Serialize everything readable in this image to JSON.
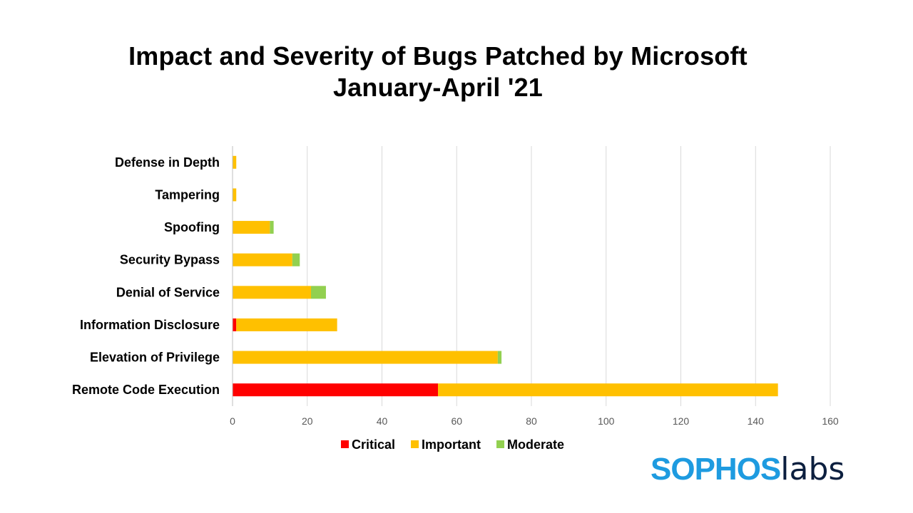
{
  "chart_data": {
    "type": "bar",
    "orientation": "horizontal",
    "stacked": true,
    "title": "Impact and Severity of Bugs Patched by Microsoft",
    "subtitle": "January-April '21",
    "categories": [
      "Defense in Depth",
      "Tampering",
      "Spoofing",
      "Security Bypass",
      "Denial of Service",
      "Information Disclosure",
      "Elevation of Privilege",
      "Remote Code Execution"
    ],
    "series": [
      {
        "name": "Critical",
        "color": "#ff0000",
        "values": [
          0,
          0,
          0,
          0,
          0,
          1,
          0,
          55
        ]
      },
      {
        "name": "Important",
        "color": "#ffc000",
        "values": [
          1,
          1,
          10,
          16,
          21,
          27,
          71,
          91
        ]
      },
      {
        "name": "Moderate",
        "color": "#92d050",
        "values": [
          0,
          0,
          1,
          2,
          4,
          0,
          1,
          0
        ]
      }
    ],
    "xlim": [
      0,
      160
    ],
    "xticks": [
      "0",
      "20",
      "40",
      "60",
      "80",
      "100",
      "120",
      "140",
      "160"
    ],
    "grid": true,
    "legend_position": "bottom"
  },
  "logo": {
    "brand": "SOPHOS",
    "suffix": "labs"
  }
}
